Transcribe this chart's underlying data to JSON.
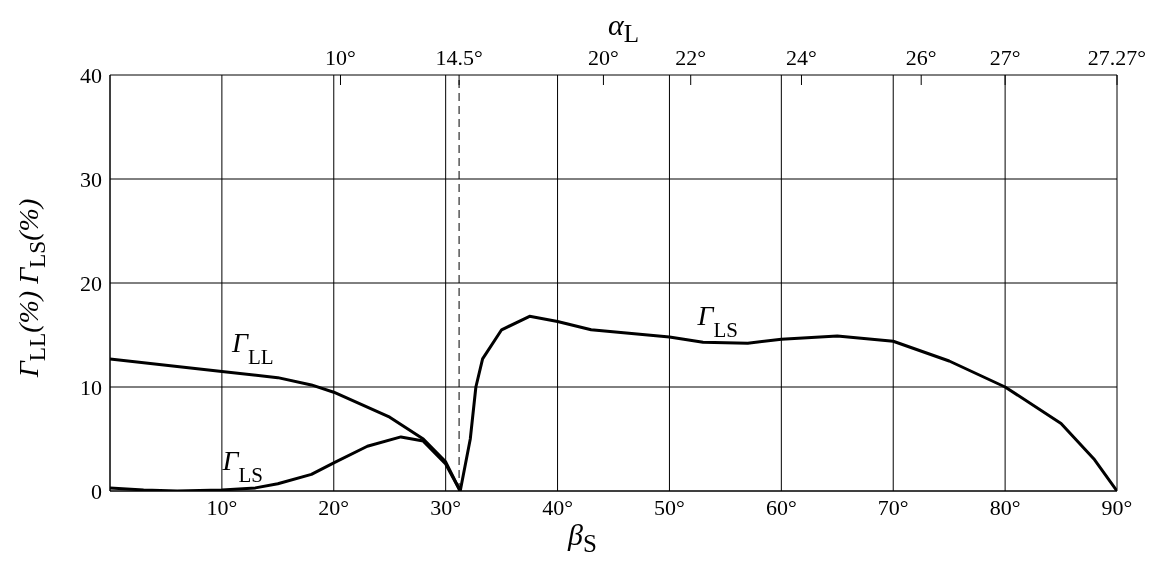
{
  "chart_data": {
    "type": "line",
    "xlabel": "β$_{S}$",
    "ylabel": "Γ$_{LL}$(%) Γ$_{LS}$(%)",
    "x2label": "α$_{L}$",
    "xlim": [
      0,
      90
    ],
    "xticks": [
      {
        "value": 10,
        "label": "10°"
      },
      {
        "value": 20,
        "label": "20°"
      },
      {
        "value": 30,
        "label": "30°"
      },
      {
        "value": 40,
        "label": "40°"
      },
      {
        "value": 50,
        "label": "50°"
      },
      {
        "value": 60,
        "label": "60°"
      },
      {
        "value": 70,
        "label": "70°"
      },
      {
        "value": 80,
        "label": "80°"
      },
      {
        "value": 90,
        "label": "90°"
      }
    ],
    "annotations": [
      "10°",
      "14.5°",
      "20°",
      "22°",
      "24°",
      "26°",
      "27°",
      "27.27°"
    ],
    "ylim": [
      0,
      40
    ],
    "yticks": [
      0,
      10,
      20,
      30,
      40
    ],
    "grid": true,
    "line_style": "solid",
    "ref_lines": [
      {
        "axis": "x",
        "value": 31.2,
        "line_style": "dashed",
        "color": "#000000"
      }
    ],
    "series": [
      {
        "name": "Γ$_{LL}$",
        "color": "#000000",
        "x": [
          0,
          10,
          15,
          18,
          20,
          25,
          28,
          30,
          31.3
        ],
        "values": [
          12.7,
          11.5,
          10.9,
          10.2,
          9.5,
          7.1,
          5,
          2.8,
          0
        ]
      },
      {
        "name": "Γ$_{LS}$",
        "color": "#000000",
        "x": [
          0,
          3,
          6,
          10,
          13,
          15,
          18,
          20,
          23,
          26,
          28,
          30,
          31.3,
          32.2,
          32.7,
          33.3,
          35,
          37.5,
          40,
          43,
          50,
          53,
          57,
          60,
          65,
          70,
          75,
          80,
          85,
          88,
          90
        ],
        "values": [
          0.3,
          0.1,
          0,
          0.1,
          0.3,
          0.7,
          1.6,
          2.7,
          4.3,
          5.2,
          4.8,
          2.6,
          0,
          5,
          10,
          12.7,
          15.5,
          16.8,
          16.3,
          15.5,
          14.8,
          14.3,
          14.2,
          14.6,
          14.9,
          14.4,
          12.5,
          10,
          6.5,
          3,
          0
        ]
      }
    ]
  }
}
